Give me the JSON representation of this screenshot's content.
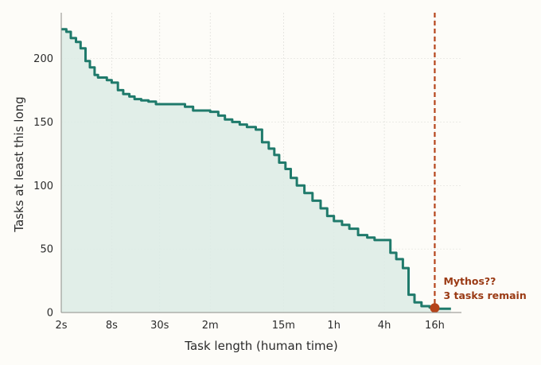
{
  "chart_data": {
    "type": "area",
    "title": "",
    "xlabel": "Task length (human time)",
    "ylabel": "Tasks at least this long",
    "x_scale": "log",
    "x_unit": "seconds",
    "x_ticks": [
      {
        "value": 2,
        "label": "2s"
      },
      {
        "value": 8,
        "label": "8s"
      },
      {
        "value": 30,
        "label": "30s"
      },
      {
        "value": 120,
        "label": "2m"
      },
      {
        "value": 900,
        "label": "15m"
      },
      {
        "value": 3600,
        "label": "1h"
      },
      {
        "value": 14400,
        "label": "4h"
      },
      {
        "value": 57600,
        "label": "16h"
      }
    ],
    "y_ticks": [
      0,
      50,
      100,
      150,
      200
    ],
    "xlim": [
      2,
      120000
    ],
    "ylim": [
      0,
      236
    ],
    "grid": true,
    "colors": {
      "line": "#1f7a6b",
      "fill": "#dcebe5",
      "marker": "#b5441b",
      "annotation": "#9a3a14",
      "vline": "#b5441b"
    },
    "series": [
      {
        "x": [
          2,
          2.3,
          2.6,
          3.0,
          3.4,
          3.9,
          4.4,
          5.0,
          5.5,
          6.0,
          7.0,
          8.0,
          9.5,
          11,
          13,
          15,
          18,
          22,
          27,
          35,
          45,
          60,
          75,
          95,
          120,
          150,
          180,
          220,
          270,
          330,
          420,
          500,
          600,
          700,
          800,
          950,
          1100,
          1300,
          1600,
          2000,
          2500,
          3000,
          3600,
          4500,
          5500,
          7000,
          9000,
          11000,
          14400,
          17000,
          20000,
          24000,
          28000,
          33000,
          40000,
          50000,
          57600,
          65000,
          80000,
          90000
        ],
        "y": [
          223,
          221,
          216,
          213,
          208,
          198,
          193,
          187,
          185,
          185,
          183,
          181,
          175,
          172,
          170,
          168,
          167,
          166,
          164,
          164,
          164,
          162,
          159,
          159,
          158,
          155,
          152,
          150,
          148,
          146,
          144,
          134,
          129,
          124,
          118,
          113,
          106,
          100,
          94,
          88,
          82,
          76,
          72,
          69,
          66,
          61,
          59,
          57,
          57,
          47,
          42,
          35,
          14,
          8,
          5,
          4,
          3,
          3,
          3,
          3
        ]
      }
    ],
    "highlight": {
      "x": 57600,
      "y": 3
    },
    "vline_x": 57600,
    "annotation": {
      "line1": "Mythos??",
      "line2": "3 tasks remain"
    }
  }
}
